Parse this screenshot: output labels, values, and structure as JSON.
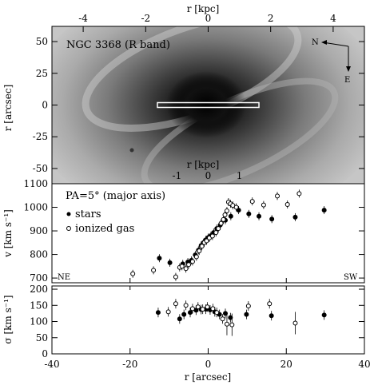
{
  "chart_data": [
    {
      "type": "image",
      "title": "NGC 3368 (R band)",
      "top_axis": {
        "label": "r [kpc]",
        "ticks": [
          -4,
          -2,
          0,
          2,
          4
        ],
        "lim": [
          -5.0,
          5.0
        ]
      },
      "inner_axis": {
        "label": "r [kpc]",
        "ticks": [
          -1,
          0,
          1
        ]
      },
      "y_axis": {
        "label": "r [arcsec]",
        "ticks": [
          50,
          25,
          0,
          -25,
          -50
        ],
        "lim": [
          -62,
          62
        ]
      },
      "x_axis": {
        "lim": [
          -40,
          40
        ]
      },
      "slit": {
        "x_range": [
          -13,
          13
        ],
        "y": 0
      },
      "compass": {
        "north_label": "N",
        "east_label": "E"
      }
    },
    {
      "type": "scatter",
      "annotation": "PA=5° (major axis)",
      "ylabel": "v [km s⁻¹]",
      "ylim": [
        680,
        1100
      ],
      "yticks": [
        700,
        800,
        900,
        1000,
        1100
      ],
      "xlim": [
        -40,
        40
      ],
      "corner_labels": {
        "left": "NE",
        "right": "SW"
      },
      "series": [
        {
          "name": "stars",
          "marker": "filled",
          "points": [
            [
              -12.5,
              784
            ],
            [
              -9.8,
              765
            ],
            [
              -6.5,
              760
            ],
            [
              -5.2,
              768
            ],
            [
              -4.3,
              775
            ],
            [
              -3.3,
              798
            ],
            [
              -2.5,
              818
            ],
            [
              -1.8,
              838
            ],
            [
              -1.2,
              850
            ],
            [
              -0.6,
              862
            ],
            [
              0.0,
              872
            ],
            [
              0.7,
              880
            ],
            [
              1.4,
              893
            ],
            [
              2.2,
              910
            ],
            [
              3.1,
              925
            ],
            [
              4.4,
              945
            ],
            [
              5.8,
              962
            ],
            [
              7.8,
              988
            ],
            [
              10.4,
              972
            ],
            [
              13.0,
              962
            ],
            [
              16.3,
              950
            ],
            [
              22.3,
              958
            ],
            [
              29.7,
              988
            ]
          ]
        },
        {
          "name": "ionized gas",
          "marker": "open",
          "points": [
            [
              -19.3,
              718
            ],
            [
              -14.0,
              733
            ],
            [
              -8.3,
              705
            ],
            [
              -7.3,
              745
            ],
            [
              -6.7,
              750
            ],
            [
              -5.7,
              740
            ],
            [
              -5.0,
              757
            ],
            [
              -4.0,
              770
            ],
            [
              -3.0,
              790
            ],
            [
              -2.3,
              815
            ],
            [
              -1.6,
              835
            ],
            [
              -1.0,
              850
            ],
            [
              -0.4,
              858
            ],
            [
              0.3,
              870
            ],
            [
              1.1,
              878
            ],
            [
              2.0,
              893
            ],
            [
              2.6,
              910
            ],
            [
              3.3,
              932
            ],
            [
              3.9,
              948
            ],
            [
              4.3,
              968
            ],
            [
              4.8,
              985
            ],
            [
              5.2,
              1022
            ],
            [
              5.7,
              1015
            ],
            [
              6.3,
              1008
            ],
            [
              7.2,
              1000
            ],
            [
              11.3,
              1025
            ],
            [
              14.2,
              1010
            ],
            [
              17.7,
              1048
            ],
            [
              20.3,
              1012
            ],
            [
              23.3,
              1058
            ]
          ]
        }
      ]
    },
    {
      "type": "scatter",
      "ylabel": "σ [km s⁻¹]",
      "xlabel": "r [arcsec]",
      "ylim": [
        0,
        210
      ],
      "yticks": [
        0,
        50,
        100,
        150,
        200
      ],
      "xlim": [
        -40,
        40
      ],
      "xticks": [
        -40,
        -20,
        0,
        20,
        40
      ],
      "series": [
        {
          "name": "stars",
          "marker": "filled",
          "points": [
            [
              -12.8,
              128
            ],
            [
              -7.3,
              108
            ],
            [
              -6.2,
              122
            ],
            [
              -4.6,
              128
            ],
            [
              -3.1,
              135
            ],
            [
              -1.8,
              137
            ],
            [
              -0.6,
              138
            ],
            [
              0.5,
              136
            ],
            [
              1.7,
              130
            ],
            [
              2.9,
              122
            ],
            [
              4.4,
              125
            ],
            [
              5.7,
              112
            ],
            [
              9.8,
              122
            ],
            [
              16.2,
              118
            ],
            [
              29.7,
              120
            ]
          ]
        },
        {
          "name": "ionized gas",
          "marker": "open",
          "points": [
            [
              -10.2,
              130
            ],
            [
              -8.3,
              155
            ],
            [
              -5.7,
              150
            ],
            [
              -4.0,
              140
            ],
            [
              -2.6,
              145
            ],
            [
              -1.4,
              138
            ],
            [
              -0.2,
              145
            ],
            [
              1.2,
              140
            ],
            [
              2.2,
              128
            ],
            [
              3.7,
              108
            ],
            [
              4.8,
              92
            ],
            [
              6.1,
              90
            ],
            [
              10.3,
              148
            ],
            [
              15.7,
              155
            ],
            [
              22.3,
              95
            ]
          ]
        }
      ]
    }
  ]
}
